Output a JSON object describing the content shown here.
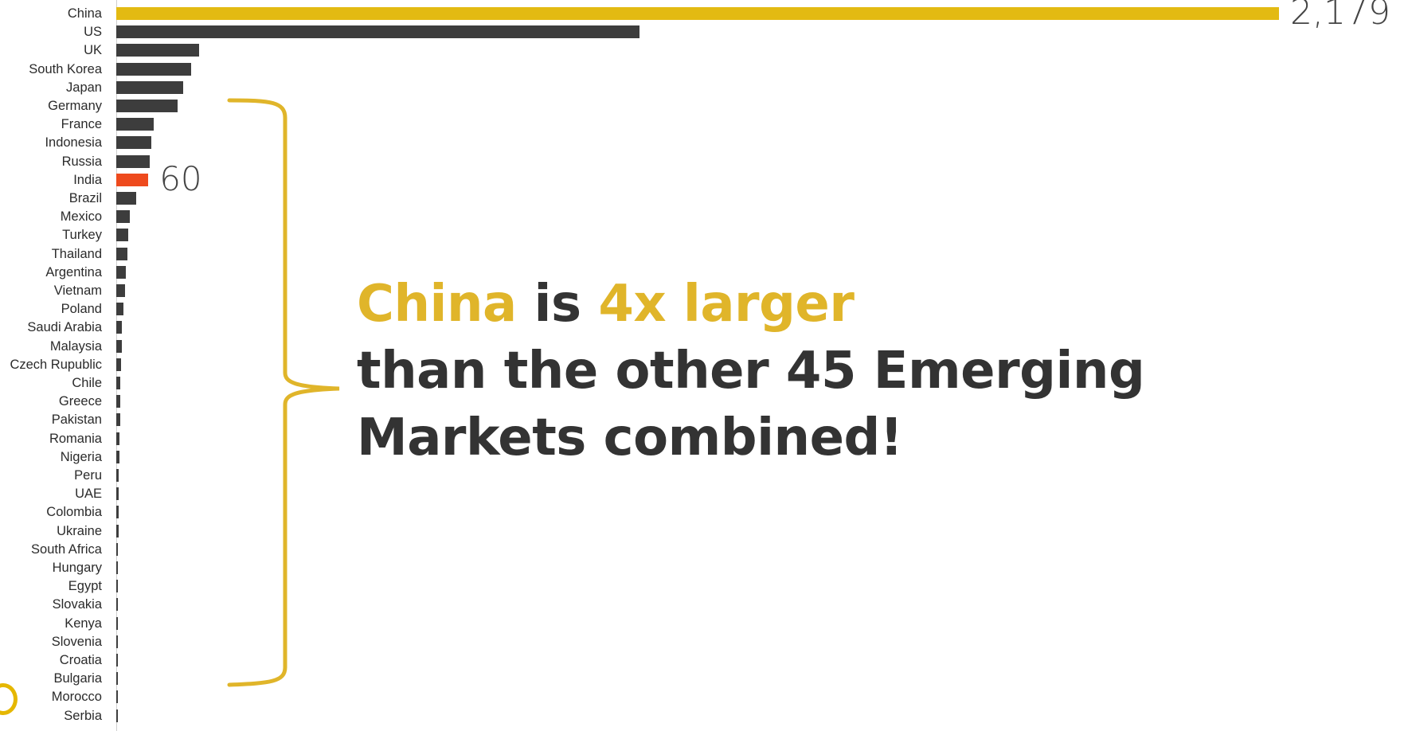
{
  "chart_data": {
    "type": "bar",
    "orientation": "horizontal",
    "categories": [
      "China",
      "US",
      "UK",
      "South Korea",
      "Japan",
      "Germany",
      "France",
      "Indonesia",
      "Russia",
      "India",
      "Brazil",
      "Mexico",
      "Turkey",
      "Thailand",
      "Argentina",
      "Vietnam",
      "Poland",
      "Saudi Arabia",
      "Malaysia",
      "Czech Rupublic",
      "Chile",
      "Greece",
      "Pakistan",
      "Romania",
      "Nigeria",
      "Peru",
      "UAE",
      "Colombia",
      "Ukraine",
      "South Africa",
      "Hungary",
      "Egypt",
      "Slovakia",
      "Kenya",
      "Slovenia",
      "Croatia",
      "Bulgaria",
      "Morocco",
      "Serbia"
    ],
    "values": [
      2179,
      980,
      155,
      140,
      125,
      115,
      70,
      66,
      63,
      60,
      38,
      25,
      23,
      21,
      18,
      16,
      13,
      11,
      10,
      9,
      8,
      8,
      7,
      6,
      6,
      5,
      5,
      4,
      4,
      3,
      3,
      2,
      2,
      2,
      1,
      1,
      1,
      1,
      1
    ],
    "highlight": {
      "China": "#e3ba12",
      "India": "#ee4a1d"
    },
    "default_color": "#3d3d3d",
    "data_labels": [
      {
        "category": "China",
        "text": "2,179"
      },
      {
        "category": "India",
        "text": "60"
      }
    ],
    "xlim": [
      0,
      2179
    ],
    "grid": false,
    "legend": "none"
  },
  "annotation": {
    "line1_a": "China",
    "line1_b": " is ",
    "line1_c": "4x larger",
    "line2": "than the other 45 Emerging",
    "line3": "Markets combined!"
  },
  "colors": {
    "accent": "#e0b52a",
    "text": "#333333",
    "india": "#ee4a1d"
  }
}
